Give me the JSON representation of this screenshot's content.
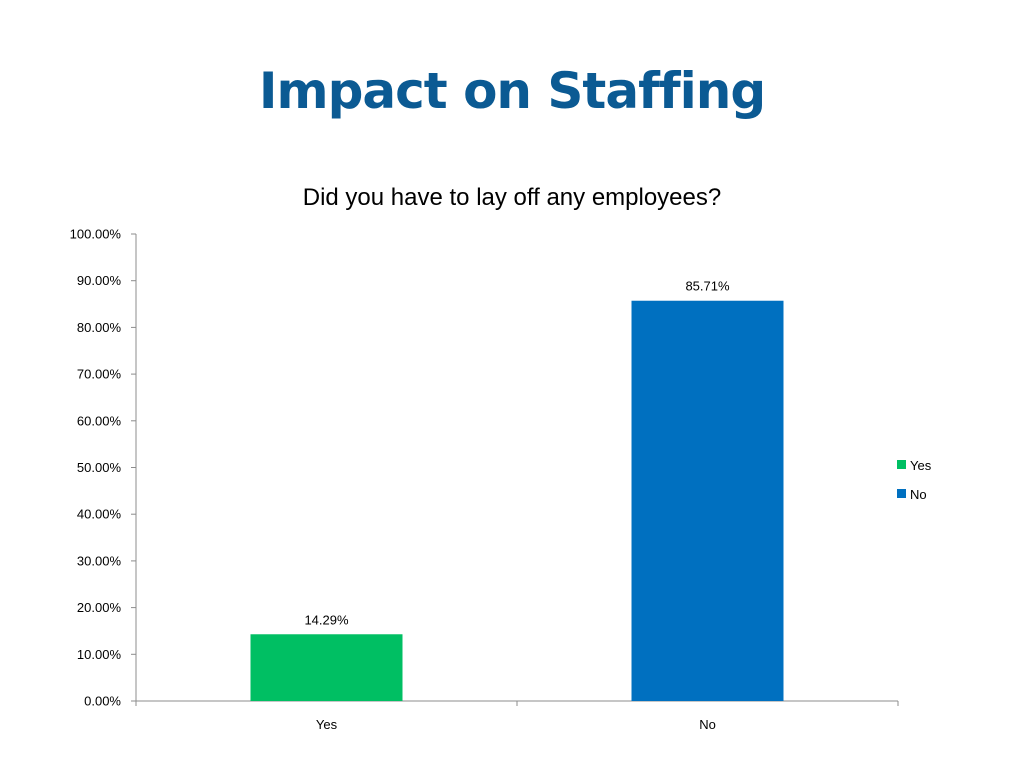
{
  "slide": {
    "title": "Impact on Staffing"
  },
  "chart_data": {
    "type": "bar",
    "title": "Did you have to lay off any employees?",
    "xlabel": "",
    "ylabel": "",
    "categories": [
      "Yes",
      "No"
    ],
    "values": [
      14.29,
      85.71
    ],
    "value_labels": [
      "14.29%",
      "85.71%"
    ],
    "colors": [
      "#00bf63",
      "#0070c0"
    ],
    "ylim": [
      0,
      100
    ],
    "y_ticks": [
      0,
      10,
      20,
      30,
      40,
      50,
      60,
      70,
      80,
      90,
      100
    ],
    "y_tick_labels": [
      "0.00%",
      "10.00%",
      "20.00%",
      "30.00%",
      "40.00%",
      "50.00%",
      "60.00%",
      "70.00%",
      "80.00%",
      "90.00%",
      "100.00%"
    ],
    "grid": false,
    "legend": {
      "placement": "right",
      "entries": [
        {
          "label": "Yes",
          "color": "#00bf63"
        },
        {
          "label": "No",
          "color": "#0070c0"
        }
      ]
    }
  }
}
